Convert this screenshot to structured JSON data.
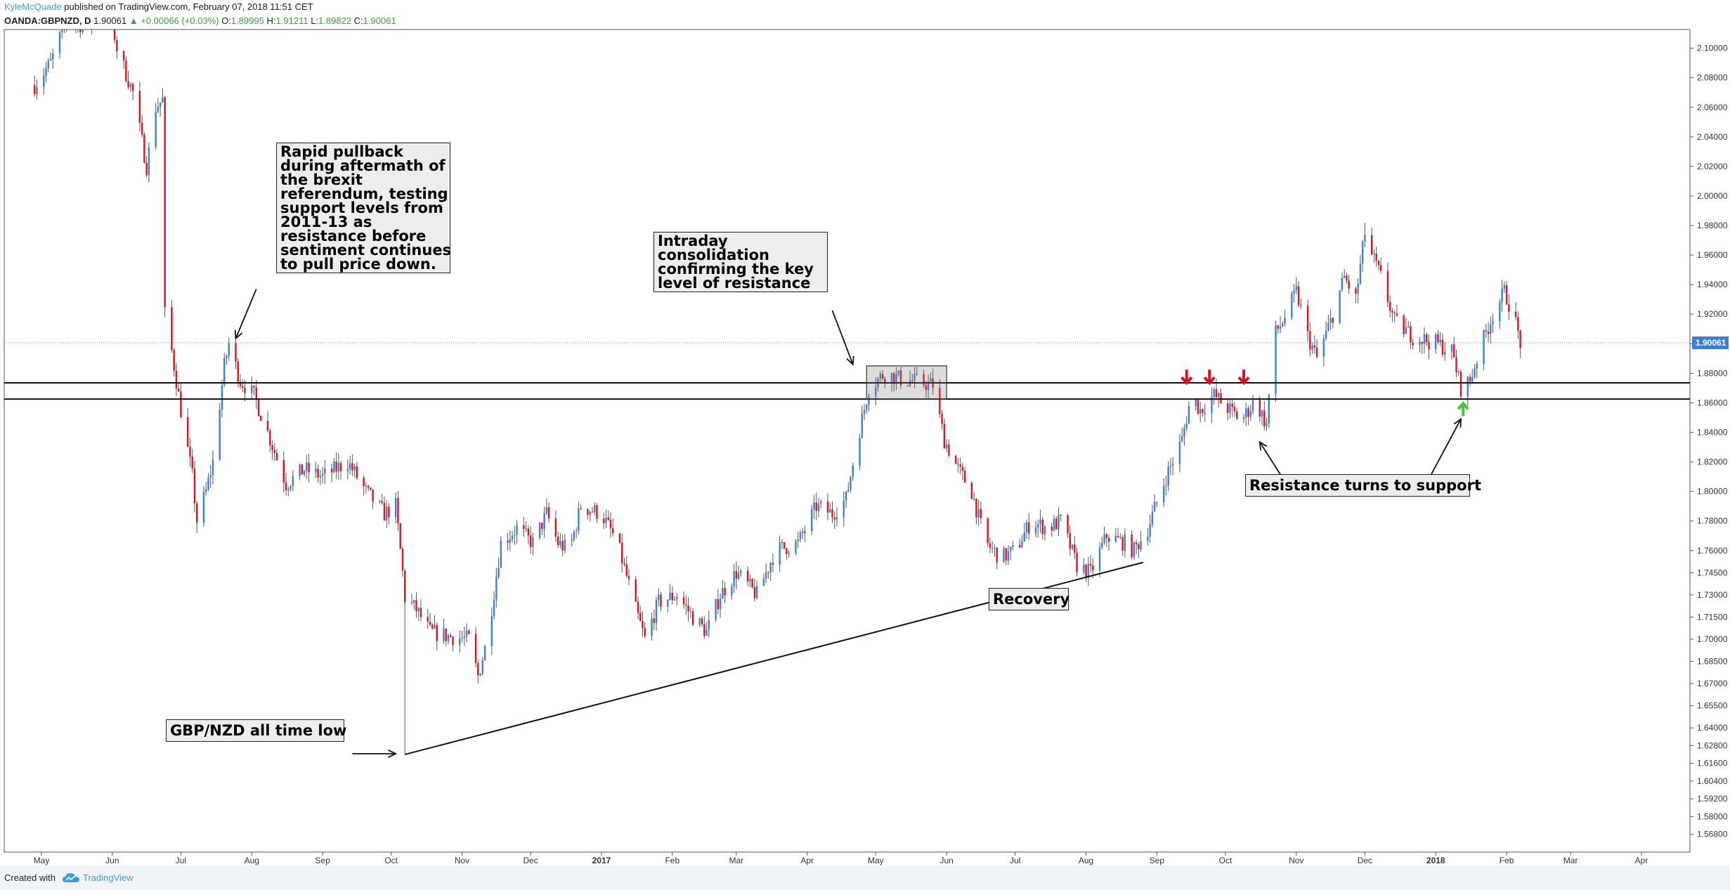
{
  "header": {
    "author": "KyleMcQuade",
    "published_text": " published on TradingView.com, February 07, 2018 11:51 CET",
    "symbol": "OANDA:GBPNZD, D",
    "last": "1.90061",
    "change": "+0.00066 (+0.03%)",
    "o_label": "O:",
    "o_value": "1.89995",
    "h_label": "H:",
    "h_value": "1.91211",
    "l_label": "L:",
    "l_value": "1.89822",
    "c_label": "C:",
    "c_value": "1.90061"
  },
  "footer": {
    "created_with": "Created with",
    "brand": "TradingView"
  },
  "annotations": {
    "brexit": [
      "Rapid pullback",
      "during aftermath of",
      "the brexit",
      "referendum, testing",
      "support levels from",
      "2011-13 as",
      "resistance before",
      "sentiment continues",
      "to pull price down."
    ],
    "consolidation": [
      "Intraday",
      "consolidation",
      "confirming the key",
      "level of resistance"
    ],
    "all_time_low": "GBP/NZD all time low",
    "recovery": "Recovery",
    "resistance_support": "Resistance turns to support"
  },
  "chart_data": {
    "type": "candlestick",
    "symbol": "OANDA:GBPNZD",
    "timeframe": "D",
    "colors": {
      "up": "#3b7de0",
      "down": "#e0101a",
      "support_arrow": "#3cc83c",
      "resistance_arrow": "#e0101a",
      "price_label_bg": "#3a7fd5"
    },
    "ylim": [
      1.558,
      2.112
    ],
    "y_ticks": [
      "2.10000",
      "2.08000",
      "2.06000",
      "2.04000",
      "2.02000",
      "2.00000",
      "1.98000",
      "1.96000",
      "1.94000",
      "1.92000",
      "1.90000",
      "1.88000",
      "1.86000",
      "1.84000",
      "1.82000",
      "1.80000",
      "1.78000",
      "1.76000",
      "1.74500",
      "1.73000",
      "1.71500",
      "1.70000",
      "1.68500",
      "1.67000",
      "1.65500",
      "1.64000",
      "1.62800",
      "1.61600",
      "1.60400",
      "1.59200",
      "1.58000",
      "1.56800"
    ],
    "x_range": [
      "2016-04-28",
      "2018-04-28"
    ],
    "x_ticks": [
      {
        "label": "May",
        "date": "2016-05-01"
      },
      {
        "label": "Jun",
        "date": "2016-06-01"
      },
      {
        "label": "Jul",
        "date": "2016-07-01"
      },
      {
        "label": "Aug",
        "date": "2016-08-01"
      },
      {
        "label": "Sep",
        "date": "2016-09-01"
      },
      {
        "label": "Oct",
        "date": "2016-10-01"
      },
      {
        "label": "Nov",
        "date": "2016-11-01"
      },
      {
        "label": "Dec",
        "date": "2016-12-01"
      },
      {
        "label": "2017",
        "date": "2017-01-01",
        "bold": true
      },
      {
        "label": "Feb",
        "date": "2017-02-01"
      },
      {
        "label": "Mar",
        "date": "2017-03-01"
      },
      {
        "label": "Apr",
        "date": "2017-04-01"
      },
      {
        "label": "May",
        "date": "2017-05-01"
      },
      {
        "label": "Jun",
        "date": "2017-06-01"
      },
      {
        "label": "Jul",
        "date": "2017-07-01"
      },
      {
        "label": "Aug",
        "date": "2017-08-01"
      },
      {
        "label": "Sep",
        "date": "2017-09-01"
      },
      {
        "label": "Oct",
        "date": "2017-10-01"
      },
      {
        "label": "Nov",
        "date": "2017-11-01"
      },
      {
        "label": "Dec",
        "date": "2017-12-01"
      },
      {
        "label": "2018",
        "date": "2018-01-01",
        "bold": true
      },
      {
        "label": "Feb",
        "date": "2018-02-01"
      },
      {
        "label": "Mar",
        "date": "2018-03-01"
      },
      {
        "label": "Apr",
        "date": "2018-04-01"
      }
    ],
    "current_price": "1.90061",
    "current_price_value": 1.90061,
    "anchors": [
      {
        "date": "2016-04-28",
        "price": 2.075
      },
      {
        "date": "2016-05-05",
        "price": 2.09
      },
      {
        "date": "2016-05-12",
        "price": 2.12
      },
      {
        "date": "2016-05-20",
        "price": 2.115
      },
      {
        "date": "2016-05-31",
        "price": 2.125
      },
      {
        "date": "2016-06-03",
        "price": 2.1
      },
      {
        "date": "2016-06-10",
        "price": 2.07
      },
      {
        "date": "2016-06-16",
        "price": 2.02
      },
      {
        "date": "2016-06-20",
        "price": 2.06
      },
      {
        "date": "2016-06-23",
        "price": 2.065
      },
      {
        "date": "2016-06-24",
        "price": 1.92
      },
      {
        "date": "2016-06-27",
        "price": 1.895
      },
      {
        "date": "2016-07-01",
        "price": 1.855
      },
      {
        "date": "2016-07-06",
        "price": 1.81
      },
      {
        "date": "2016-07-08",
        "price": 1.78
      },
      {
        "date": "2016-07-12",
        "price": 1.8
      },
      {
        "date": "2016-07-15",
        "price": 1.82
      },
      {
        "date": "2016-07-20",
        "price": 1.885
      },
      {
        "date": "2016-07-22",
        "price": 1.9
      },
      {
        "date": "2016-07-27",
        "price": 1.875
      },
      {
        "date": "2016-08-02",
        "price": 1.865
      },
      {
        "date": "2016-08-08",
        "price": 1.84
      },
      {
        "date": "2016-08-16",
        "price": 1.805
      },
      {
        "date": "2016-08-24",
        "price": 1.815
      },
      {
        "date": "2016-09-01",
        "price": 1.81
      },
      {
        "date": "2016-09-12",
        "price": 1.82
      },
      {
        "date": "2016-09-20",
        "price": 1.8
      },
      {
        "date": "2016-09-28",
        "price": 1.785
      },
      {
        "date": "2016-10-03",
        "price": 1.79
      },
      {
        "date": "2016-10-06",
        "price": 1.745
      },
      {
        "date": "2016-10-07",
        "price": 1.728
      },
      {
        "date": "2016-10-12",
        "price": 1.72
      },
      {
        "date": "2016-10-18",
        "price": 1.705
      },
      {
        "date": "2016-10-26",
        "price": 1.702
      },
      {
        "date": "2016-11-04",
        "price": 1.7
      },
      {
        "date": "2016-11-08",
        "price": 1.675
      },
      {
        "date": "2016-11-12",
        "price": 1.7
      },
      {
        "date": "2016-11-18",
        "price": 1.765
      },
      {
        "date": "2016-11-25",
        "price": 1.775
      },
      {
        "date": "2016-12-02",
        "price": 1.765
      },
      {
        "date": "2016-12-08",
        "price": 1.785
      },
      {
        "date": "2016-12-13",
        "price": 1.765
      },
      {
        "date": "2016-12-18",
        "price": 1.76
      },
      {
        "date": "2016-12-23",
        "price": 1.79
      },
      {
        "date": "2017-01-01",
        "price": 1.785
      },
      {
        "date": "2017-01-08",
        "price": 1.765
      },
      {
        "date": "2017-01-16",
        "price": 1.72
      },
      {
        "date": "2017-01-20",
        "price": 1.7
      },
      {
        "date": "2017-01-26",
        "price": 1.725
      },
      {
        "date": "2017-02-03",
        "price": 1.73
      },
      {
        "date": "2017-02-10",
        "price": 1.715
      },
      {
        "date": "2017-02-16",
        "price": 1.705
      },
      {
        "date": "2017-02-22",
        "price": 1.73
      },
      {
        "date": "2017-03-01",
        "price": 1.745
      },
      {
        "date": "2017-03-10",
        "price": 1.73
      },
      {
        "date": "2017-03-18",
        "price": 1.76
      },
      {
        "date": "2017-03-28",
        "price": 1.765
      },
      {
        "date": "2017-04-05",
        "price": 1.79
      },
      {
        "date": "2017-04-12",
        "price": 1.785
      },
      {
        "date": "2017-04-18",
        "price": 1.795
      },
      {
        "date": "2017-04-23",
        "price": 1.835
      },
      {
        "date": "2017-04-28",
        "price": 1.87
      },
      {
        "date": "2017-05-05",
        "price": 1.88
      },
      {
        "date": "2017-05-12",
        "price": 1.876
      },
      {
        "date": "2017-05-20",
        "price": 1.874
      },
      {
        "date": "2017-05-26",
        "price": 1.872
      },
      {
        "date": "2017-05-31",
        "price": 1.835
      },
      {
        "date": "2017-06-06",
        "price": 1.815
      },
      {
        "date": "2017-06-12",
        "price": 1.8
      },
      {
        "date": "2017-06-18",
        "price": 1.765
      },
      {
        "date": "2017-06-25",
        "price": 1.755
      },
      {
        "date": "2017-07-01",
        "price": 1.76
      },
      {
        "date": "2017-07-08",
        "price": 1.78
      },
      {
        "date": "2017-07-15",
        "price": 1.775
      },
      {
        "date": "2017-07-21",
        "price": 1.78
      },
      {
        "date": "2017-07-28",
        "price": 1.75
      },
      {
        "date": "2017-08-03",
        "price": 1.745
      },
      {
        "date": "2017-08-10",
        "price": 1.77
      },
      {
        "date": "2017-08-18",
        "price": 1.765
      },
      {
        "date": "2017-08-22",
        "price": 1.76
      },
      {
        "date": "2017-08-28",
        "price": 1.775
      },
      {
        "date": "2017-09-05",
        "price": 1.81
      },
      {
        "date": "2017-09-12",
        "price": 1.835
      },
      {
        "date": "2017-09-16",
        "price": 1.865
      },
      {
        "date": "2017-09-20",
        "price": 1.855
      },
      {
        "date": "2017-09-26",
        "price": 1.865
      },
      {
        "date": "2017-10-03",
        "price": 1.855
      },
      {
        "date": "2017-10-08",
        "price": 1.848
      },
      {
        "date": "2017-10-14",
        "price": 1.862
      },
      {
        "date": "2017-10-19",
        "price": 1.845
      },
      {
        "date": "2017-10-22",
        "price": 1.905
      },
      {
        "date": "2017-10-26",
        "price": 1.915
      },
      {
        "date": "2017-11-01",
        "price": 1.935
      },
      {
        "date": "2017-11-06",
        "price": 1.905
      },
      {
        "date": "2017-11-10",
        "price": 1.89
      },
      {
        "date": "2017-11-16",
        "price": 1.915
      },
      {
        "date": "2017-11-22",
        "price": 1.945
      },
      {
        "date": "2017-11-27",
        "price": 1.93
      },
      {
        "date": "2017-12-01",
        "price": 1.975
      },
      {
        "date": "2017-12-04",
        "price": 1.96
      },
      {
        "date": "2017-12-08",
        "price": 1.945
      },
      {
        "date": "2017-12-14",
        "price": 1.915
      },
      {
        "date": "2017-12-22",
        "price": 1.905
      },
      {
        "date": "2018-01-02",
        "price": 1.9
      },
      {
        "date": "2018-01-08",
        "price": 1.895
      },
      {
        "date": "2018-01-12",
        "price": 1.87
      },
      {
        "date": "2018-01-16",
        "price": 1.875
      },
      {
        "date": "2018-01-20",
        "price": 1.895
      },
      {
        "date": "2018-01-26",
        "price": 1.92
      },
      {
        "date": "2018-01-31",
        "price": 1.935
      },
      {
        "date": "2018-02-04",
        "price": 1.92
      },
      {
        "date": "2018-02-07",
        "price": 1.90061
      }
    ],
    "extremes": [
      {
        "date": "2016-10-07",
        "low": 1.622
      },
      {
        "date": "2016-11-08",
        "low": 1.67
      },
      {
        "date": "2016-07-08",
        "low": 1.772
      },
      {
        "date": "2017-12-01",
        "high": 1.982
      },
      {
        "date": "2018-01-12",
        "low": 1.862
      }
    ],
    "horizontal_levels": [
      1.8735,
      1.8625
    ],
    "consolidation_box": {
      "start": "2017-04-27",
      "end": "2017-06-01",
      "top": 1.885,
      "bottom": 1.8625
    },
    "trendline": {
      "from": {
        "date": "2016-10-07",
        "price": 1.622
      },
      "to": {
        "date": "2017-08-26",
        "price": 1.752
      }
    },
    "resistance_arrows": [
      {
        "date": "2017-09-14",
        "price": 1.872
      },
      {
        "date": "2017-09-24",
        "price": 1.872
      },
      {
        "date": "2017-10-09",
        "price": 1.872
      }
    ],
    "support_arrows": [
      {
        "date": "2018-01-13",
        "price": 1.8615
      }
    ],
    "pointer_arrows": [
      {
        "from": {
          "date": "2016-08-03",
          "price": 1.937
        },
        "to": {
          "date": "2016-07-25",
          "price": 1.9035
        }
      },
      {
        "from": {
          "date": "2017-04-12",
          "price": 1.9225
        },
        "to": {
          "date": "2017-04-21",
          "price": 1.886
        }
      },
      {
        "from": {
          "date": "2016-09-14",
          "price": 1.6225
        },
        "to": {
          "date": "2016-10-03",
          "price": 1.6225
        }
      },
      {
        "from": {
          "date": "2017-10-31",
          "price": 1.797
        },
        "to": {
          "date": "2017-10-16",
          "price": 1.8335
        }
      },
      {
        "from": {
          "date": "2017-12-25",
          "price": 1.797
        },
        "to": {
          "date": "2018-01-12",
          "price": 1.849
        }
      }
    ]
  }
}
